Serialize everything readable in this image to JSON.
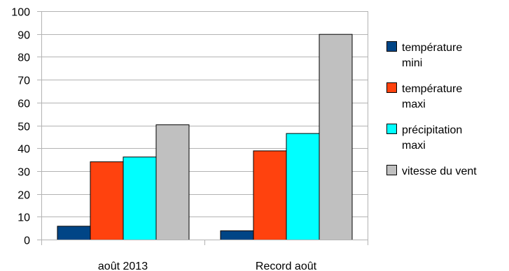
{
  "chart_data": {
    "type": "bar",
    "title": "",
    "xlabel": "",
    "ylabel": "",
    "ylim": [
      0,
      100
    ],
    "yticks": [
      0,
      10,
      20,
      30,
      40,
      50,
      60,
      70,
      80,
      90,
      100
    ],
    "grid": true,
    "legend_position": "right",
    "categories": [
      "août 2013",
      "Record août"
    ],
    "series": [
      {
        "name": "température mini",
        "legend_lines": [
          "température",
          "mini"
        ],
        "color": "#004586",
        "values": [
          6,
          4
        ]
      },
      {
        "name": "température maxi",
        "legend_lines": [
          "température",
          "maxi"
        ],
        "color": "#ff420e",
        "values": [
          34.2,
          39
        ]
      },
      {
        "name": "précipitation maxi",
        "legend_lines": [
          "précipitation",
          "maxi"
        ],
        "color": "#00ffff",
        "values": [
          36.3,
          46.6
        ]
      },
      {
        "name": "vitesse du vent",
        "legend_lines": [
          "vitesse du vent"
        ],
        "color": "#c0c0c0",
        "values": [
          50.4,
          90
        ]
      }
    ]
  }
}
